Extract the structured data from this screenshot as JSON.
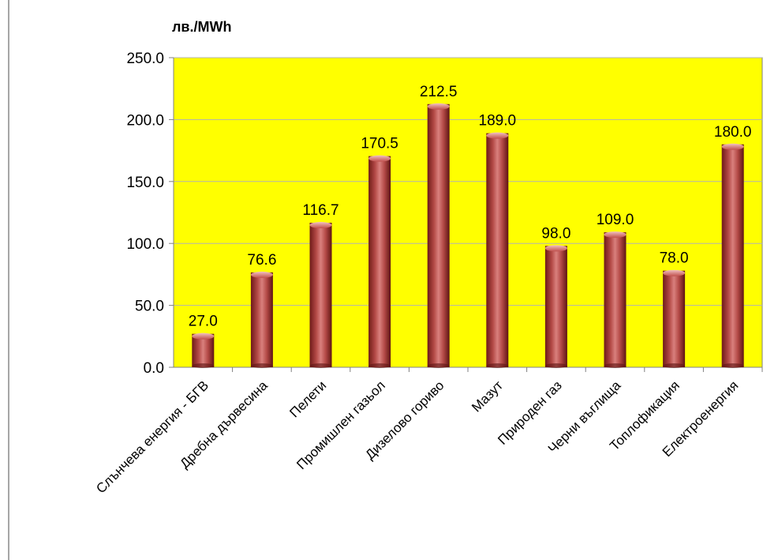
{
  "chart_data": {
    "type": "bar",
    "ylabel": "лв./MWh",
    "categories": [
      "Слънчева енергия - БГВ",
      "Дребна дървесина",
      "Пелети",
      "Промишлен газьол",
      "Дизелово гориво",
      "Мазут",
      "Природен газ",
      "Черни въглища",
      "Топлофикация",
      "Електроенергия"
    ],
    "values": [
      27.0,
      76.6,
      116.7,
      170.5,
      212.5,
      189.0,
      98.0,
      109.0,
      78.0,
      180.0
    ],
    "value_labels": [
      "27.0",
      "76.6",
      "116.7",
      "170.5",
      "212.5",
      "189.0",
      "98.0",
      "109.0",
      "78.0",
      "180.0"
    ],
    "ylim": [
      0,
      250
    ],
    "yticks": [
      "0.0",
      "50.0",
      "100.0",
      "150.0",
      "200.0",
      "250.0"
    ],
    "grid": true,
    "colors": {
      "plot_background": "#ffff00",
      "bar": "#c0504d",
      "bar_dark": "#7a1e1c",
      "bar_light": "#e8a4a2",
      "gridline": "#b3b3b3"
    }
  }
}
